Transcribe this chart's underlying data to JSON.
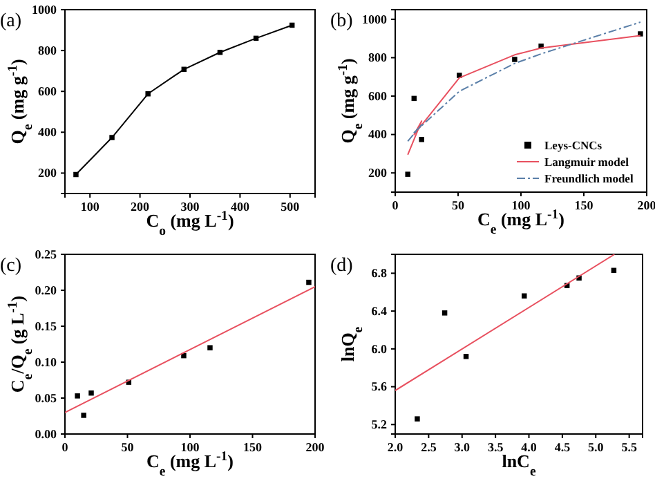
{
  "chart_data": [
    {
      "type": "line",
      "title": "(a)",
      "xlabel": "C$_{o}$ (mg L$^{-1}$)",
      "ylabel": "Q$_{e}$ (mg g$^{-1}$)",
      "xlim": [
        50,
        550
      ],
      "ylim": [
        100,
        1000
      ],
      "xticks": [
        100,
        200,
        300,
        400,
        500
      ],
      "yticks": [
        200,
        400,
        600,
        800,
        1000
      ],
      "marker": "square",
      "grid": false,
      "legend": false,
      "series": [
        {
          "color": "#000000",
          "x": [
            72,
            144,
            216,
            288,
            360,
            432,
            504
          ],
          "values": [
            193,
            374,
            588,
            708,
            791,
            860,
            924
          ]
        }
      ]
    },
    {
      "type": "scatter",
      "title": "(b)",
      "xlabel": "C$_{e}$ (mg L$^{-1}$)",
      "ylabel": "Q$_{e}$ (mg g$^{-1}$)",
      "xlim": [
        0,
        200
      ],
      "ylim": [
        100,
        1050
      ],
      "xticks": [
        0,
        50,
        100,
        150,
        200
      ],
      "yticks": [
        200,
        400,
        600,
        800,
        1000
      ],
      "grid": false,
      "legend": "bottom right",
      "series": [
        {
          "name": "Leys-CNCs",
          "marker": "square",
          "color": "#000000",
          "x": [
            10,
            21,
            15,
            51,
            95,
            116,
            195
          ],
          "values": [
            193,
            374,
            588,
            708,
            791,
            860,
            924
          ]
        },
        {
          "name": "Langmuir model",
          "type": "line",
          "marker": "none",
          "line_style": "solid",
          "color": "#e8505f",
          "x": [
            10,
            21,
            15,
            51,
            95,
            116,
            195
          ],
          "values": [
            295,
            470,
            400,
            695,
            815,
            850,
            915
          ]
        },
        {
          "name": "Freundlich model",
          "type": "line",
          "marker": "none",
          "line_style": "dashed",
          "color": "#5a7fa8",
          "x": [
            10,
            21,
            15,
            51,
            95,
            116,
            195
          ],
          "values": [
            365,
            450,
            410,
            625,
            770,
            820,
            985
          ]
        }
      ]
    },
    {
      "type": "scatter",
      "title": "(c)",
      "xlabel": "C$_{e}$ (mg L$^{-1}$)",
      "ylabel": "C$_{e}$/Q$_{e}$ (g L$^{-1}$)",
      "xlim": [
        0,
        200
      ],
      "ylim": [
        0,
        0.25
      ],
      "xticks": [
        0,
        50,
        100,
        150,
        200
      ],
      "yticks": [
        {
          "value": 0,
          "label": "0.00"
        },
        0.05,
        {
          "value": 0.1,
          "label": "0.10"
        },
        0.15,
        {
          "value": 0.2,
          "label": "0.20"
        },
        0.25
      ],
      "grid": false,
      "legend": false,
      "series": [
        {
          "marker": "square",
          "color": "#000000",
          "x": [
            10,
            15,
            21,
            51,
            95,
            116,
            195
          ],
          "values": [
            0.053,
            0.026,
            0.057,
            0.072,
            0.109,
            0.12,
            0.211
          ]
        },
        {
          "type": "line",
          "marker": "none",
          "line_style": "solid",
          "color": "#e8505f",
          "x": [
            0,
            200
          ],
          "values": [
            0.03,
            0.205
          ]
        }
      ]
    },
    {
      "type": "scatter",
      "title": "(d)",
      "xlabel": "lnC$_{e}$",
      "ylabel": "lnQ$_{e}$",
      "xlim": [
        2.0,
        5.7
      ],
      "ylim": [
        5.1,
        7.0
      ],
      "xticks": [
        {
          "value": 2,
          "label": "2.0"
        },
        2.5,
        {
          "value": 3,
          "label": "3.0"
        },
        3.5,
        {
          "value": 4,
          "label": "4.0"
        },
        4.5,
        {
          "value": 5,
          "label": "5.0"
        },
        5.5
      ],
      "yticks": [
        5.2,
        5.6,
        {
          "value": 6,
          "label": "6.0"
        },
        6.4,
        6.8
      ],
      "grid": false,
      "legend": false,
      "series": [
        {
          "marker": "square",
          "color": "#000000",
          "x": [
            2.33,
            2.74,
            3.06,
            3.93,
            4.57,
            4.75,
            5.27
          ],
          "values": [
            5.26,
            6.38,
            5.92,
            6.56,
            6.67,
            6.75,
            6.83
          ]
        },
        {
          "type": "line",
          "marker": "none",
          "line_style": "solid",
          "color": "#e8505f",
          "x": [
            2.0,
            5.28
          ],
          "values": [
            5.56,
            7.0
          ]
        }
      ]
    }
  ]
}
